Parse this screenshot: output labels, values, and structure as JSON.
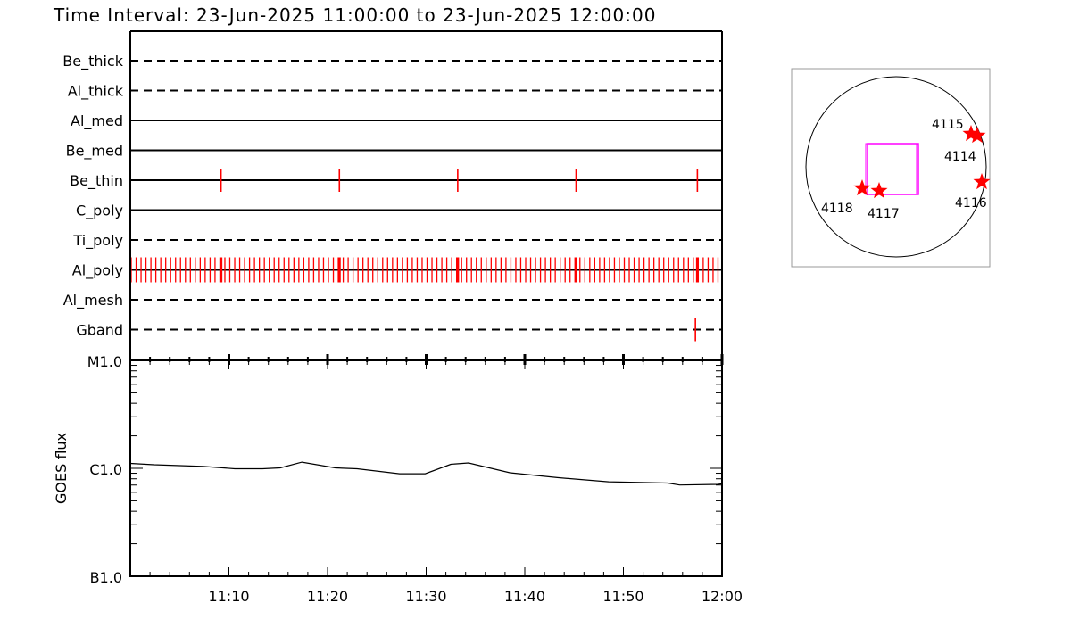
{
  "title": "Time Interval: 23-Jun-2025 11:00:00 to 23-Jun-2025 12:00:00",
  "colors": {
    "obs": "#ff0000",
    "fov": "#ff00ff",
    "axis": "#000000",
    "star": "#ff0000"
  },
  "chart_data": [
    {
      "type": "timeline",
      "xrange": [
        "11:00",
        "12:00"
      ],
      "rows": [
        {
          "label": "Be_thick",
          "style": "dashed",
          "obs": []
        },
        {
          "label": "Al_thick",
          "style": "dashed",
          "obs": []
        },
        {
          "label": "Al_med",
          "style": "solid",
          "obs": []
        },
        {
          "label": "Be_med",
          "style": "solid",
          "obs": []
        },
        {
          "label": "Be_thin",
          "style": "solid",
          "obs": [
            "11:09:12",
            "11:21:12",
            "11:33:12",
            "11:45:12",
            "11:57:30"
          ]
        },
        {
          "label": "C_poly",
          "style": "solid",
          "obs": []
        },
        {
          "label": "Ti_poly",
          "style": "dashed",
          "obs": []
        },
        {
          "label": "Al_poly",
          "style": "solid",
          "obs_series": {
            "start": "11:00:00",
            "end": "11:59:30",
            "cadence_s": 30
          },
          "obs": [
            "11:09:12",
            "11:21:12",
            "11:33:12",
            "11:45:12",
            "11:57:30"
          ]
        },
        {
          "label": "Al_mesh",
          "style": "dashed",
          "obs": []
        },
        {
          "label": "Gband",
          "style": "dashed",
          "obs": [
            "11:57:18"
          ]
        }
      ]
    },
    {
      "type": "line",
      "ylabel": "GOES flux",
      "yscale": "log",
      "ylim": [
        1e-07,
        1e-05
      ],
      "yticks": [
        {
          "value": 1e-07,
          "label": "B1.0"
        },
        {
          "value": 1e-06,
          "label": "C1.0"
        },
        {
          "value": 1e-05,
          "label": "M1.0"
        }
      ],
      "xticks": [
        "11:10",
        "11:20",
        "11:30",
        "11:40",
        "11:50",
        "12:00"
      ],
      "x_minutes_after_11": [
        0,
        2.4,
        7.4,
        10.6,
        13.4,
        15.2,
        17.4,
        20.8,
        23.0,
        27.3,
        29.9,
        32.5,
        34.3,
        38.5,
        43.3,
        48.5,
        54.5,
        55.7,
        59.6,
        60
      ],
      "y": [
        1.11e-06,
        1.08e-06,
        1.04e-06,
        9.9e-07,
        9.9e-07,
        1.01e-06,
        1.14e-06,
        1.01e-06,
        9.9e-07,
        8.9e-07,
        8.9e-07,
        1.09e-06,
        1.12e-06,
        9.1e-07,
        8.2e-07,
        7.5e-07,
        7.3e-07,
        7e-07,
        7.1e-07,
        7.2e-07
      ]
    },
    {
      "type": "scatter",
      "description_of_marks": "solar disk map",
      "active_regions": [
        {
          "label": "4118"
        },
        {
          "label": "4117"
        },
        {
          "label": "4115"
        },
        {
          "label": "4114"
        },
        {
          "label": "4116"
        }
      ]
    }
  ]
}
